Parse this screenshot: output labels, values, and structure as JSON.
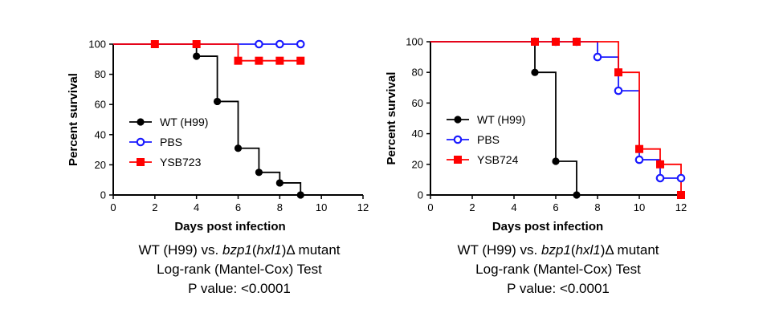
{
  "chart_data": [
    {
      "type": "line",
      "subtype": "kaplan-meier",
      "xlabel": "Days post infection",
      "ylabel": "Percent survival",
      "xlim": [
        0,
        12
      ],
      "ylim": [
        0,
        100
      ],
      "xticks": [
        0,
        2,
        4,
        6,
        8,
        10,
        12
      ],
      "yticks": [
        0,
        20,
        40,
        60,
        80,
        100
      ],
      "legend_position": "center-left",
      "series": [
        {
          "name": "WT (H99)",
          "color": "#000000",
          "marker": "filled-circle",
          "steps": [
            [
              0,
              100
            ],
            [
              4,
              92
            ],
            [
              5,
              62
            ],
            [
              6,
              31
            ],
            [
              7,
              15
            ],
            [
              8,
              8
            ],
            [
              9,
              0
            ]
          ],
          "markers": [
            [
              2,
              100
            ],
            [
              4,
              92
            ],
            [
              5,
              62
            ],
            [
              6,
              31
            ],
            [
              7,
              15
            ],
            [
              8,
              8
            ],
            [
              9,
              0
            ]
          ]
        },
        {
          "name": "PBS",
          "color": "#1a1aff",
          "marker": "open-circle",
          "steps": [
            [
              0,
              100
            ],
            [
              9,
              100
            ]
          ],
          "markers": [
            [
              7,
              100
            ],
            [
              8,
              100
            ],
            [
              9,
              100
            ]
          ]
        },
        {
          "name": "YSB723",
          "color": "#ff0000",
          "marker": "filled-square",
          "steps": [
            [
              0,
              100
            ],
            [
              6,
              89
            ],
            [
              9,
              89
            ]
          ],
          "markers": [
            [
              2,
              100
            ],
            [
              4,
              100
            ],
            [
              6,
              89
            ],
            [
              7,
              89
            ],
            [
              8,
              89
            ],
            [
              9,
              89
            ]
          ]
        }
      ],
      "caption": {
        "line1_prefix": "WT (H99) vs. ",
        "line1_gene": "bzp1",
        "line1_paren_open": "(",
        "line1_gene2": "hxl1",
        "line1_paren_close": ")",
        "line1_suffix": "Δ mutant",
        "line2": "Log-rank (Mantel-Cox) Test",
        "line3": "P value: <0.0001"
      }
    },
    {
      "type": "line",
      "subtype": "kaplan-meier",
      "xlabel": "Days post infection",
      "ylabel": "Percent survival",
      "xlim": [
        0,
        12
      ],
      "ylim": [
        0,
        100
      ],
      "xticks": [
        0,
        2,
        4,
        6,
        8,
        10,
        12
      ],
      "yticks": [
        0,
        20,
        40,
        60,
        80,
        100
      ],
      "legend_position": "center-left",
      "series": [
        {
          "name": "WT (H99)",
          "color": "#000000",
          "marker": "filled-circle",
          "steps": [
            [
              0,
              100
            ],
            [
              5,
              80
            ],
            [
              6,
              22
            ],
            [
              7,
              0
            ]
          ],
          "markers": [
            [
              5,
              80
            ],
            [
              6,
              22
            ],
            [
              7,
              0
            ]
          ]
        },
        {
          "name": "PBS",
          "color": "#1a1aff",
          "marker": "open-circle",
          "steps": [
            [
              0,
              100
            ],
            [
              8,
              90
            ],
            [
              9,
              68
            ],
            [
              10,
              23
            ],
            [
              11,
              11
            ],
            [
              12,
              11
            ]
          ],
          "markers": [
            [
              5,
              100
            ],
            [
              6,
              100
            ],
            [
              7,
              100
            ],
            [
              8,
              90
            ],
            [
              9,
              68
            ],
            [
              10,
              23
            ],
            [
              11,
              11
            ],
            [
              12,
              11
            ]
          ]
        },
        {
          "name": "YSB724",
          "color": "#ff0000",
          "marker": "filled-square",
          "steps": [
            [
              0,
              100
            ],
            [
              9,
              80
            ],
            [
              10,
              30
            ],
            [
              11,
              20
            ],
            [
              12,
              0
            ]
          ],
          "markers": [
            [
              5,
              100
            ],
            [
              6,
              100
            ],
            [
              7,
              100
            ],
            [
              9,
              80
            ],
            [
              10,
              30
            ],
            [
              11,
              20
            ],
            [
              12,
              0
            ]
          ]
        }
      ],
      "caption": {
        "line1_prefix": "WT (H99) vs. ",
        "line1_gene": "bzp1",
        "line1_paren_open": "(",
        "line1_gene2": "hxl1",
        "line1_paren_close": ")",
        "line1_suffix": "Δ mutant",
        "line2": "Log-rank (Mantel-Cox) Test",
        "line3": "P value: <0.0001"
      }
    }
  ]
}
